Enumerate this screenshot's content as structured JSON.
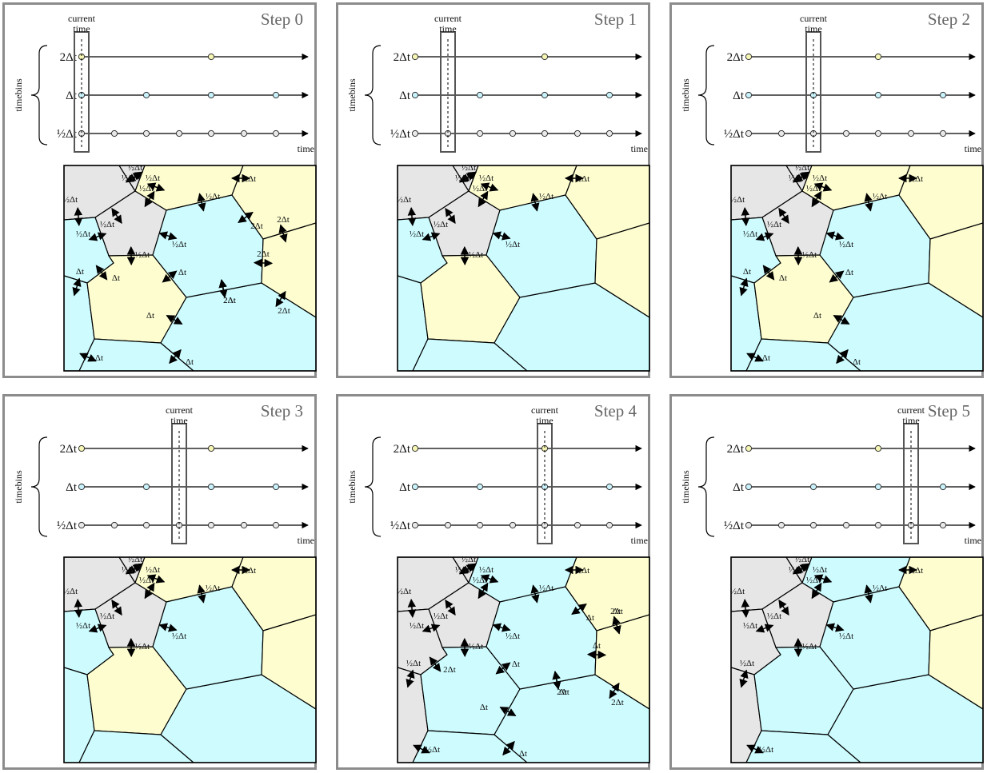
{
  "labels": {
    "current_time": [
      "current",
      "time"
    ],
    "timebins": "timebins",
    "time": "time",
    "rows": [
      "2Δt",
      "Δt",
      "½Δt"
    ],
    "half_dt": "½Δt",
    "dt": "Δt",
    "two_dt": "2Δt"
  },
  "colors": {
    "half_dt": "#e6e6e6",
    "dt": "#cdfbfe",
    "two_dt": "#fdfdd0",
    "marker_half": "#e8e8e8",
    "marker_dt": "#c8f2fb",
    "marker_two": "#f6f6b4",
    "panel_border": "#8c8c8c",
    "title": "#666666"
  },
  "steps": [
    {
      "title": "Step 0",
      "current_tick": 0,
      "cells": {
        "A": "half",
        "B": "half",
        "C": "half",
        "D": "dt",
        "E": "dt",
        "F": "two",
        "G": "two",
        "H": "dt",
        "I": "dt",
        "J": "dt",
        "K": "two",
        "L": "two",
        "M": "two",
        "N": "two"
      },
      "arrows": [
        [
          "C0",
          "½Δt"
        ],
        [
          "C1",
          "½Δt"
        ],
        [
          "C2",
          "½Δt"
        ],
        [
          "C3",
          "½Δt"
        ],
        [
          "C4",
          "½Δt"
        ],
        [
          "C5",
          "½Δt"
        ],
        [
          "C6",
          "½Δt"
        ],
        [
          "AB",
          "½Δt"
        ],
        [
          "AD",
          "½Δt"
        ],
        [
          "BF",
          "½Δt"
        ],
        [
          "BG",
          "½Δt"
        ],
        [
          "DE",
          "Δt"
        ],
        [
          "EH",
          "Δt"
        ],
        [
          "HI",
          "Δt"
        ],
        [
          "IJ",
          "Δt"
        ],
        [
          "JF",
          "Δt"
        ],
        [
          "FK",
          "2Δt"
        ],
        [
          "KM",
          "2Δt"
        ],
        [
          "FM",
          "2Δt"
        ],
        [
          "MN",
          "2Δt"
        ],
        [
          "NL",
          "2Δt"
        ],
        [
          "JL",
          "2Δt"
        ],
        [
          "IL",
          "Δt"
        ]
      ]
    },
    {
      "title": "Step 1",
      "current_tick": 1,
      "cells": {
        "A": "half",
        "B": "half",
        "C": "half",
        "D": "dt",
        "E": "dt",
        "F": "two",
        "G": "two",
        "H": "dt",
        "I": "dt",
        "J": "dt",
        "K": "two",
        "L": "two",
        "M": "two",
        "N": "two"
      },
      "arrows": [
        [
          "C0",
          "½Δt"
        ],
        [
          "C1",
          "½Δt"
        ],
        [
          "C2",
          "½Δt"
        ],
        [
          "C3",
          "½Δt"
        ],
        [
          "C4",
          "½Δt"
        ],
        [
          "C5",
          "½Δt"
        ],
        [
          "C6",
          "½Δt"
        ],
        [
          "AB",
          "½Δt"
        ],
        [
          "AD",
          "½Δt"
        ],
        [
          "BF",
          "½Δt"
        ],
        [
          "BG",
          "½Δt"
        ]
      ]
    },
    {
      "title": "Step 2",
      "current_tick": 2,
      "cells": {
        "A": "half",
        "B": "half",
        "C": "half",
        "D": "dt",
        "E": "dt",
        "F": "two",
        "G": "two",
        "H": "dt",
        "I": "dt",
        "J": "dt",
        "K": "two",
        "L": "two",
        "M": "two",
        "N": "two"
      },
      "arrows": [
        [
          "C0",
          "½Δt"
        ],
        [
          "C1",
          "½Δt"
        ],
        [
          "C2",
          "½Δt"
        ],
        [
          "C3",
          "½Δt"
        ],
        [
          "C4",
          "½Δt"
        ],
        [
          "C5",
          "½Δt"
        ],
        [
          "C6",
          "½Δt"
        ],
        [
          "AB",
          "½Δt"
        ],
        [
          "AD",
          "½Δt"
        ],
        [
          "BF",
          "½Δt"
        ],
        [
          "BG",
          "½Δt"
        ],
        [
          "DE",
          "Δt"
        ],
        [
          "EH",
          "Δt"
        ],
        [
          "HI",
          "Δt"
        ],
        [
          "IJ",
          "Δt"
        ],
        [
          "JF",
          "Δt"
        ],
        [
          "IL",
          "Δt"
        ]
      ]
    },
    {
      "title": "Step 3",
      "current_tick": 3,
      "cells": {
        "A": "half",
        "B": "half",
        "C": "half",
        "D": "dt",
        "E": "dt",
        "F": "two",
        "G": "two",
        "H": "dt",
        "I": "dt",
        "J": "dt",
        "K": "two",
        "L": "two",
        "M": "two",
        "N": "two"
      },
      "arrows": [
        [
          "C0",
          "½Δt"
        ],
        [
          "C1",
          "½Δt"
        ],
        [
          "C2",
          "½Δt"
        ],
        [
          "C3",
          "½Δt"
        ],
        [
          "C4",
          "½Δt"
        ],
        [
          "C5",
          "½Δt"
        ],
        [
          "C6",
          "½Δt"
        ],
        [
          "AB",
          "½Δt"
        ],
        [
          "AD",
          "½Δt"
        ],
        [
          "BF",
          "½Δt"
        ],
        [
          "BG",
          "½Δt"
        ]
      ]
    },
    {
      "title": "Step 4",
      "current_tick": 4,
      "cells": {
        "A": "half",
        "B": "half",
        "C": "half",
        "D": "half",
        "E": "half",
        "F": "dt",
        "G": "dt",
        "H": "dt",
        "I": "dt",
        "J": "dt",
        "K": "two",
        "L": "two",
        "M": "two",
        "N": "two"
      },
      "arrows": [
        [
          "C0",
          "½Δt"
        ],
        [
          "C1",
          "½Δt"
        ],
        [
          "C2",
          "½Δt"
        ],
        [
          "C3",
          "½Δt"
        ],
        [
          "C4",
          "½Δt"
        ],
        [
          "C5",
          "½Δt"
        ],
        [
          "C6",
          "½Δt"
        ],
        [
          "AB",
          "½Δt"
        ],
        [
          "AD",
          "½Δt"
        ],
        [
          "DE",
          "½Δt"
        ],
        [
          "EH",
          "½Δt"
        ],
        [
          "BF",
          "½Δt"
        ],
        [
          "BG",
          "½Δt"
        ],
        [
          "GK",
          "Δt"
        ],
        [
          "GM",
          "Δt"
        ],
        [
          "FM",
          "Δt"
        ],
        [
          "FJ",
          "Δt"
        ],
        [
          "IJ",
          "Δt"
        ],
        [
          "HI",
          "Δt"
        ],
        [
          "JL",
          "Δt"
        ],
        [
          "MN",
          "2Δt"
        ],
        [
          "NL",
          "2Δt"
        ],
        [
          "IL",
          "2Δt"
        ],
        [
          "KM",
          "2Δt"
        ]
      ]
    },
    {
      "title": "Step 5",
      "current_tick": 5,
      "cells": {
        "A": "half",
        "B": "half",
        "C": "half",
        "D": "half",
        "E": "half",
        "F": "dt",
        "G": "dt",
        "H": "dt",
        "I": "dt",
        "J": "dt",
        "K": "two",
        "L": "two",
        "M": "two",
        "N": "two"
      },
      "arrows": [
        [
          "C0",
          "½Δt"
        ],
        [
          "C1",
          "½Δt"
        ],
        [
          "C2",
          "½Δt"
        ],
        [
          "C3",
          "½Δt"
        ],
        [
          "C4",
          "½Δt"
        ],
        [
          "C5",
          "½Δt"
        ],
        [
          "C6",
          "½Δt"
        ],
        [
          "AB",
          "½Δt"
        ],
        [
          "AD",
          "½Δt"
        ],
        [
          "DE",
          "½Δt"
        ],
        [
          "EH",
          "½Δt"
        ],
        [
          "BF",
          "½Δt"
        ],
        [
          "BG",
          "½Δt"
        ]
      ]
    }
  ]
}
